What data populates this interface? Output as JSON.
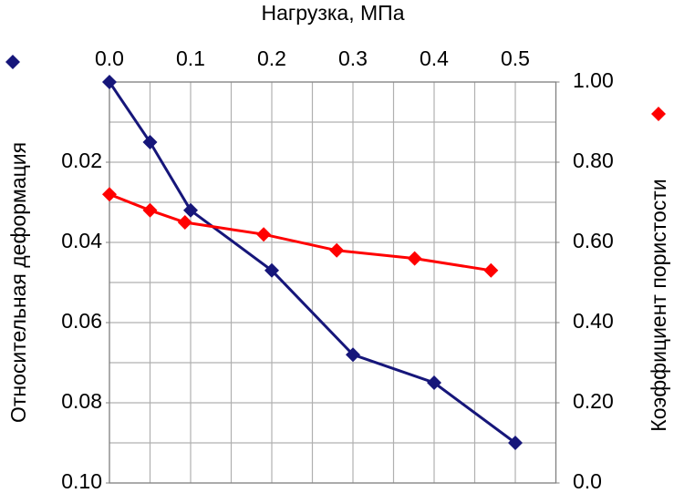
{
  "chart_data": {
    "type": "line",
    "x_title": "Нагрузка, МПа",
    "y_title": "Относительная деформация",
    "y2_title": "Коэффициент пористости",
    "xlim": [
      0,
      0.55
    ],
    "xticks": [
      {
        "value": 0,
        "label": "0.0"
      },
      0.1,
      0.2,
      0.3,
      0.4,
      0.5
    ],
    "ylim": [
      0,
      0.1
    ],
    "y_inverted": true,
    "yticks": [
      0.02,
      0.04,
      0.06,
      0.08,
      {
        "value": 0.1,
        "label": "0.10"
      }
    ],
    "y2lim": [
      0,
      1
    ],
    "y2ticks": [
      {
        "value": 1,
        "label": "1.00"
      },
      {
        "value": 0.8,
        "label": "0.80"
      },
      {
        "value": 0.6,
        "label": "0.60"
      },
      {
        "value": 0.4,
        "label": "0.40"
      },
      {
        "value": 0.2,
        "label": "0.20"
      },
      {
        "value": 0,
        "label": "0.0"
      }
    ],
    "xgrid": [
      0,
      0.05,
      0.1,
      0.15,
      0.2,
      0.25,
      0.3,
      0.35,
      0.4,
      0.45,
      0.5,
      0.55
    ],
    "ygrid": [
      0,
      0.01,
      0.02,
      0.03,
      0.04,
      0.05,
      0.06,
      0.07,
      0.08,
      0.09,
      0.1
    ],
    "series": [
      {
        "color": "#16167a",
        "axis": "y",
        "x": [
          0,
          0.05,
          0.1,
          0.2,
          0.3,
          0.4,
          0.5
        ],
        "values": [
          0,
          0.015,
          0.032,
          0.047,
          0.068,
          0.075,
          0.09
        ]
      },
      {
        "color": "#ff0000",
        "axis": "y2",
        "x": [
          0,
          0.05,
          0.093,
          0.19,
          0.28,
          0.376,
          0.47
        ],
        "values": [
          0.72,
          0.68,
          0.65,
          0.62,
          0.58,
          0.56,
          0.53
        ]
      }
    ]
  }
}
